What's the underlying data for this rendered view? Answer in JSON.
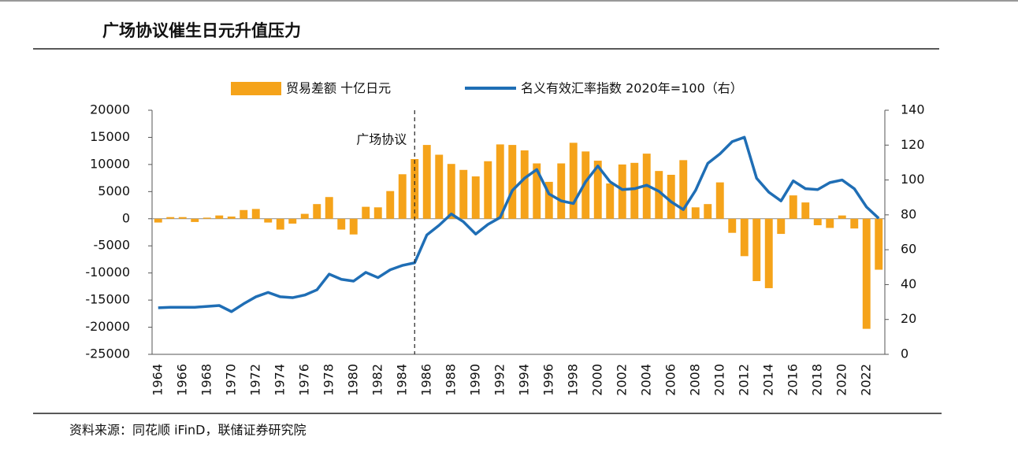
{
  "chart_data": {
    "type": "bar",
    "title": "广场协议催生日元升值压力",
    "source": "资料来源：同花顺 iFinD，联储证券研究院",
    "categories": [
      "1964",
      null,
      "1966",
      null,
      "1968",
      null,
      "1970",
      null,
      "1972",
      null,
      "1974",
      null,
      "1976",
      null,
      "1978",
      null,
      "1980",
      null,
      "1982",
      null,
      "1984",
      null,
      "1986",
      null,
      "1988",
      null,
      "1990",
      null,
      "1992",
      null,
      "1994",
      null,
      "1996",
      null,
      "1998",
      null,
      "2000",
      null,
      "2002",
      null,
      "2004",
      null,
      "2006",
      null,
      "2008",
      null,
      "2010",
      null,
      "2012",
      null,
      "2014",
      null,
      "2016",
      null,
      "2018",
      null,
      "2020",
      null,
      "2022",
      null
    ],
    "series": [
      {
        "name": "贸易差额 十亿日元",
        "color": "#f5a31a",
        "type": "bar",
        "values": [
          -700,
          300,
          300,
          -600,
          200,
          600,
          400,
          1600,
          1800,
          -700,
          -2000,
          -900,
          900,
          2700,
          4000,
          -2000,
          -2900,
          2200,
          2100,
          5100,
          8200,
          11000,
          13600,
          11800,
          10100,
          9000,
          7800,
          10600,
          13700,
          13600,
          12600,
          10200,
          6800,
          10200,
          14000,
          12400,
          10700,
          6500,
          10000,
          10300,
          12000,
          8800,
          8100,
          10800,
          2100,
          2700,
          6700,
          -2600,
          -6900,
          -11500,
          -12800,
          -2800,
          4300,
          3000,
          -1200,
          -1700,
          600,
          -1800,
          -20300,
          -9400
        ]
      },
      {
        "name": "名义有效汇率指数 2020年=100（右）",
        "color": "#1f6eb5",
        "type": "line",
        "axis": "y2",
        "values": [
          26.7,
          27,
          27,
          27,
          27.5,
          28,
          24.5,
          29,
          33,
          35.5,
          33,
          32.5,
          34,
          37,
          46,
          43,
          42,
          47,
          44,
          48.5,
          51,
          52.5,
          68.5,
          74,
          80.5,
          76,
          69,
          74.5,
          78.5,
          94,
          101,
          106,
          92,
          88,
          86.5,
          99,
          108,
          99,
          94.5,
          95,
          97,
          93.5,
          87.5,
          83,
          94,
          109.5,
          115,
          122,
          124.5,
          101,
          93,
          88,
          99.5,
          95,
          94.5,
          98.5,
          100,
          95,
          84.5,
          78
        ]
      }
    ],
    "ylim": [
      -25000,
      20000
    ],
    "yticks": [
      -25000,
      -20000,
      -15000,
      -10000,
      -5000,
      0,
      5000,
      10000,
      15000,
      20000
    ],
    "y2lim": [
      0,
      140
    ],
    "y2ticks": [
      0,
      20,
      40,
      60,
      80,
      100,
      120,
      140
    ],
    "annotations": [
      {
        "text": "广场协议",
        "x": 1985
      }
    ]
  }
}
